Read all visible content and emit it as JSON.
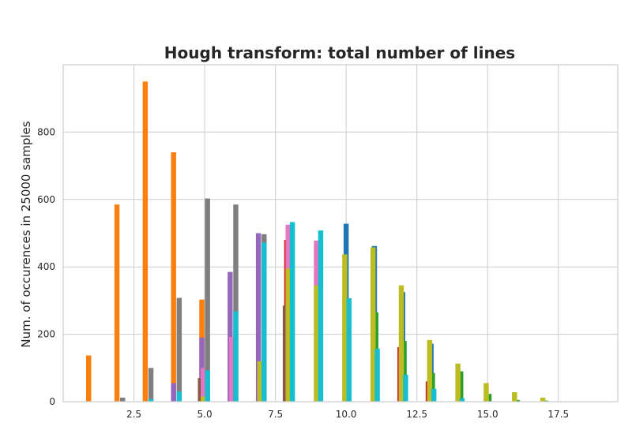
{
  "chart_data": {
    "type": "bar",
    "title": "Hough transform: total number of lines",
    "xlabel": "",
    "ylabel": "Num. of occurences in 25000 samples",
    "xlim": [
      0.0,
      19.6
    ],
    "ylim": [
      0,
      1000
    ],
    "xticks": [
      2.5,
      5.0,
      7.5,
      10.0,
      12.5,
      15.0,
      17.5
    ],
    "xtick_labels": [
      "2.5",
      "5.0",
      "7.5",
      "10.0",
      "12.5",
      "15.0",
      "17.5"
    ],
    "yticks": [
      0,
      200,
      400,
      600,
      800
    ],
    "ytick_labels": [
      "0",
      "200",
      "400",
      "600",
      "800"
    ],
    "grid": true,
    "legend": "none",
    "bar_width": 0.18,
    "series": [
      {
        "color": "#1f77b4",
        "offset": 0.0,
        "x": [
          10,
          11,
          12,
          13,
          14
        ],
        "values": [
          528,
          462,
          325,
          172,
          75
        ]
      },
      {
        "color": "#ff7f0e",
        "offset": -0.1,
        "x": [
          1,
          2,
          3,
          4,
          5
        ],
        "values": [
          137,
          585,
          950,
          740,
          303
        ]
      },
      {
        "color": "#2ca02c",
        "offset": 0.05,
        "x": [
          11,
          12,
          13,
          14,
          15,
          16,
          17
        ],
        "values": [
          265,
          180,
          85,
          90,
          23,
          5,
          3
        ]
      },
      {
        "color": "#d62728",
        "offset": -0.1,
        "x": [
          8,
          12,
          13
        ],
        "values": [
          480,
          162,
          60
        ]
      },
      {
        "color": "#9467bd",
        "offset": -0.1,
        "x": [
          4,
          5,
          6,
          7
        ],
        "values": [
          55,
          190,
          385,
          500
        ]
      },
      {
        "color": "#8c564b",
        "offset": -0.15,
        "x": [
          5,
          8
        ],
        "values": [
          70,
          285
        ]
      },
      {
        "color": "#e377c2",
        "offset": -0.05,
        "x": [
          5,
          6,
          7,
          8,
          9,
          11,
          12,
          15
        ],
        "values": [
          100,
          192,
          75,
          525,
          478,
          272,
          140,
          10
        ]
      },
      {
        "color": "#7f7f7f",
        "offset": 0.1,
        "x": [
          2,
          3,
          4,
          5,
          6,
          7
        ],
        "values": [
          12,
          100,
          308,
          603,
          585,
          497
        ]
      },
      {
        "color": "#bcbd22",
        "offset": -0.05,
        "x": [
          5,
          7,
          8,
          9,
          10,
          11,
          12,
          13,
          14,
          15,
          16,
          17
        ],
        "values": [
          15,
          120,
          395,
          345,
          437,
          458,
          345,
          183,
          113,
          55,
          28,
          12
        ]
      },
      {
        "color": "#17becf",
        "offset": 0.1,
        "x": [
          3,
          4,
          5,
          6,
          7,
          8,
          9,
          10,
          11,
          12,
          13,
          14
        ],
        "values": [
          8,
          30,
          93,
          268,
          472,
          533,
          508,
          307,
          157,
          80,
          38,
          10
        ]
      }
    ]
  }
}
